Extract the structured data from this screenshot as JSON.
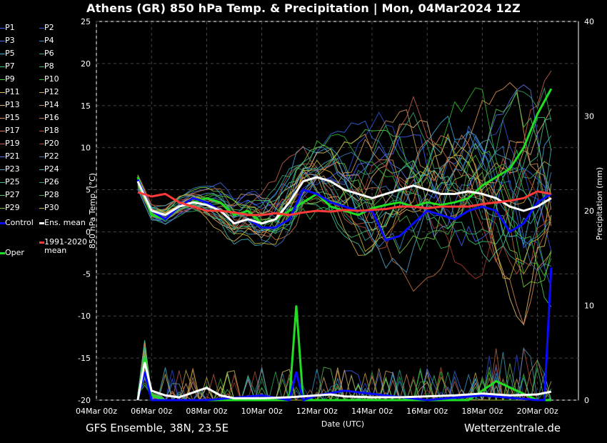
{
  "title": "Athens  (GR)  850 hPa Temp. & Precipitation | Mon, 04Mar2024 12Z",
  "footer": {
    "left": "GFS Ensemble, 38N, 23.5E",
    "right": "Wetterzentrale.de"
  },
  "legend": [
    {
      "label": "P1",
      "color": "#4060ff"
    },
    {
      "label": "P2",
      "color": "#3050e0"
    },
    {
      "label": "P3",
      "color": "#3a6ae8"
    },
    {
      "label": "P4",
      "color": "#2f8ed0"
    },
    {
      "label": "P5",
      "color": "#3aa8d8"
    },
    {
      "label": "P6",
      "color": "#2fa890"
    },
    {
      "label": "P7",
      "color": "#38c878"
    },
    {
      "label": "P8",
      "color": "#30b860"
    },
    {
      "label": "P9",
      "color": "#48d048"
    },
    {
      "label": "P10",
      "color": "#30c030"
    },
    {
      "label": "P11",
      "color": "#e0c060"
    },
    {
      "label": "P12",
      "color": "#d8b048"
    },
    {
      "label": "P13",
      "color": "#e0b070"
    },
    {
      "label": "P14",
      "color": "#c89858"
    },
    {
      "label": "P15",
      "color": "#d89050"
    },
    {
      "label": "P16",
      "color": "#c07040"
    },
    {
      "label": "P17",
      "color": "#d88060"
    },
    {
      "label": "P18",
      "color": "#b85040"
    },
    {
      "label": "P19",
      "color": "#c86048"
    },
    {
      "label": "P20",
      "color": "#b03830"
    },
    {
      "label": "P21",
      "color": "#6070e0"
    },
    {
      "label": "P22",
      "color": "#4078c0"
    },
    {
      "label": "P23",
      "color": "#50a0c8"
    },
    {
      "label": "P24",
      "color": "#40b0b8"
    },
    {
      "label": "P25",
      "color": "#40c090"
    },
    {
      "label": "P26",
      "color": "#38a870"
    },
    {
      "label": "P27",
      "color": "#58c858"
    },
    {
      "label": "P28",
      "color": "#40b040"
    },
    {
      "label": "P29",
      "color": "#78c840"
    },
    {
      "label": "P30",
      "color": "#c8b830"
    },
    {
      "label": "Control",
      "color": "#0a0aff"
    },
    {
      "label": "Ens. mean",
      "color": "#ffffff"
    },
    {
      "label": "1991-2020 mean",
      "color": "#ff3838"
    },
    {
      "label": "Oper",
      "color": "#22dd22"
    }
  ],
  "chart_data": {
    "type": "line",
    "title": "Athens  (GR)  850 hPa Temp. & Precipitation | Mon, 04Mar2024 12Z",
    "xlabel": "Date (UTC)",
    "ylabel": "850 hPa Temp. (°C)",
    "y2label": "Precipitation (mm)",
    "ylim": [
      -20,
      25
    ],
    "y2lim": [
      0,
      40
    ],
    "yticks": [
      "25",
      "20",
      "15",
      "10",
      "5",
      "0",
      "-5",
      "-10",
      "-15",
      "-20"
    ],
    "y2ticks": [
      "40",
      "30",
      "20",
      "10",
      "0"
    ],
    "xlim": [
      0,
      16.5
    ],
    "xticks": [
      {
        "x": 0,
        "label": "04Mar 00z"
      },
      {
        "x": 2,
        "label": "06Mar 00z"
      },
      {
        "x": 4,
        "label": "08Mar 00z"
      },
      {
        "x": 6,
        "label": "10Mar 00z"
      },
      {
        "x": 8,
        "label": "12Mar 00z"
      },
      {
        "x": 10,
        "label": "14Mar 00z"
      },
      {
        "x": 12,
        "label": "16Mar 00z"
      },
      {
        "x": 14,
        "label": "18Mar 00z"
      },
      {
        "x": 16,
        "label": "20Mar 00z"
      }
    ],
    "grid": true,
    "temperature_series": [
      {
        "name": "Oper",
        "color": "#22dd22",
        "width": 3,
        "x": [
          1.5,
          2.0,
          2.5,
          3.0,
          3.5,
          4.0,
          4.5,
          5.0,
          5.5,
          6.0,
          6.5,
          7.0,
          7.5,
          8.0,
          8.5,
          9.0,
          9.5,
          10.0,
          10.5,
          11.0,
          11.5,
          12.0,
          12.5,
          13.0,
          13.5,
          14.0,
          14.5,
          15.0,
          15.5,
          16.0,
          16.5
        ],
        "y": [
          6.5,
          2.0,
          1.5,
          3.0,
          3.5,
          4.0,
          3.5,
          2.0,
          2.5,
          1.0,
          1.5,
          2.5,
          3.5,
          4.5,
          3.0,
          2.5,
          2.0,
          2.8,
          3.2,
          3.5,
          3.0,
          3.5,
          3.2,
          3.5,
          4.0,
          5.5,
          6.5,
          7.5,
          10.0,
          14.0,
          17.0
        ]
      },
      {
        "name": "Control",
        "color": "#0a0aff",
        "width": 3,
        "x": [
          1.5,
          2.0,
          2.5,
          3.0,
          3.5,
          4.0,
          4.5,
          5.0,
          5.5,
          6.0,
          6.5,
          7.0,
          7.5,
          8.0,
          8.5,
          9.0,
          9.5,
          10.0,
          10.5,
          11.0,
          11.5,
          12.0,
          12.5,
          13.0,
          13.5,
          14.0,
          14.5,
          15.0,
          15.5,
          16.0,
          16.5
        ],
        "y": [
          6.2,
          2.5,
          1.5,
          3.0,
          4.0,
          3.5,
          2.5,
          1.0,
          1.5,
          0.5,
          0.5,
          1.5,
          5.0,
          4.5,
          3.5,
          3.0,
          2.5,
          2.5,
          -1.0,
          -0.5,
          1.0,
          2.5,
          2.0,
          1.5,
          2.5,
          3.0,
          2.5,
          0.0,
          1.0,
          3.5,
          4.5
        ]
      },
      {
        "name": "Ens. mean",
        "color": "#ffffff",
        "width": 3,
        "x": [
          1.5,
          2.0,
          2.5,
          3.0,
          3.5,
          4.0,
          4.5,
          5.0,
          5.5,
          6.0,
          6.5,
          7.0,
          7.5,
          8.0,
          8.5,
          9.0,
          9.5,
          10.0,
          10.5,
          11.0,
          11.5,
          12.0,
          12.5,
          13.0,
          13.5,
          14.0,
          14.5,
          15.0,
          15.5,
          16.0,
          16.5
        ],
        "y": [
          6.0,
          2.5,
          2.0,
          3.0,
          3.5,
          3.2,
          2.5,
          1.0,
          1.5,
          1.0,
          1.5,
          3.5,
          6.0,
          6.5,
          6.0,
          5.0,
          4.5,
          4.0,
          4.5,
          5.0,
          5.5,
          5.0,
          4.5,
          4.5,
          4.8,
          4.5,
          4.0,
          3.0,
          2.5,
          3.0,
          4.0
        ]
      },
      {
        "name": "1991-2020 mean",
        "color": "#ff3838",
        "width": 3,
        "x": [
          1.5,
          2.0,
          2.5,
          3.0,
          3.5,
          4.0,
          4.5,
          5.0,
          5.5,
          6.0,
          6.5,
          7.0,
          7.5,
          8.0,
          8.5,
          9.0,
          9.5,
          10.0,
          10.5,
          11.0,
          11.5,
          12.0,
          12.5,
          13.0,
          13.5,
          14.0,
          14.5,
          15.0,
          15.5,
          16.0,
          16.5
        ],
        "y": [
          4.7,
          4.2,
          4.5,
          3.5,
          3.0,
          2.5,
          2.5,
          2.3,
          2.0,
          2.0,
          2.2,
          2.0,
          2.3,
          2.5,
          2.4,
          2.6,
          2.5,
          2.6,
          2.7,
          3.0,
          3.0,
          2.8,
          3.0,
          3.0,
          3.0,
          3.3,
          3.5,
          3.7,
          4.0,
          4.8,
          4.5
        ]
      }
    ],
    "precipitation_series": [
      {
        "name": "Oper",
        "color": "#22dd22",
        "width": 3,
        "x": [
          1.5,
          1.75,
          2.0,
          2.5,
          3.0,
          7.0,
          7.25,
          7.5,
          8.0,
          10.0,
          13.5,
          14.5,
          16.0,
          16.5
        ],
        "y": [
          0,
          4.5,
          0.5,
          0,
          0,
          0,
          10,
          0,
          0,
          0,
          0,
          2.0,
          0,
          0
        ]
      },
      {
        "name": "Control",
        "color": "#0a0aff",
        "width": 3,
        "x": [
          1.5,
          1.75,
          2.0,
          3.0,
          4.0,
          6.0,
          7.0,
          7.25,
          7.5,
          8.0,
          9.0,
          12.0,
          14.0,
          16.0,
          16.25,
          16.5
        ],
        "y": [
          0,
          3.0,
          0,
          0,
          0,
          0.5,
          0,
          3.0,
          0,
          0.5,
          1.0,
          0,
          0.5,
          0,
          0,
          14.0
        ]
      },
      {
        "name": "Ens. mean",
        "color": "#ffffff",
        "width": 3,
        "x": [
          1.5,
          1.75,
          2.0,
          2.5,
          3.0,
          3.5,
          4.0,
          4.5,
          5.0,
          6.0,
          7.0,
          8.0,
          8.5,
          9.0,
          10.0,
          11.0,
          12.0,
          13.0,
          14.0,
          15.0,
          16.0,
          16.5
        ],
        "y": [
          0,
          4.0,
          1.0,
          0.5,
          0.3,
          0.8,
          1.3,
          0.5,
          0.2,
          0.2,
          0.3,
          0.5,
          0.6,
          0.4,
          0.3,
          0.3,
          0.4,
          0.5,
          0.7,
          0.5,
          0.6,
          0.9
        ]
      }
    ]
  }
}
